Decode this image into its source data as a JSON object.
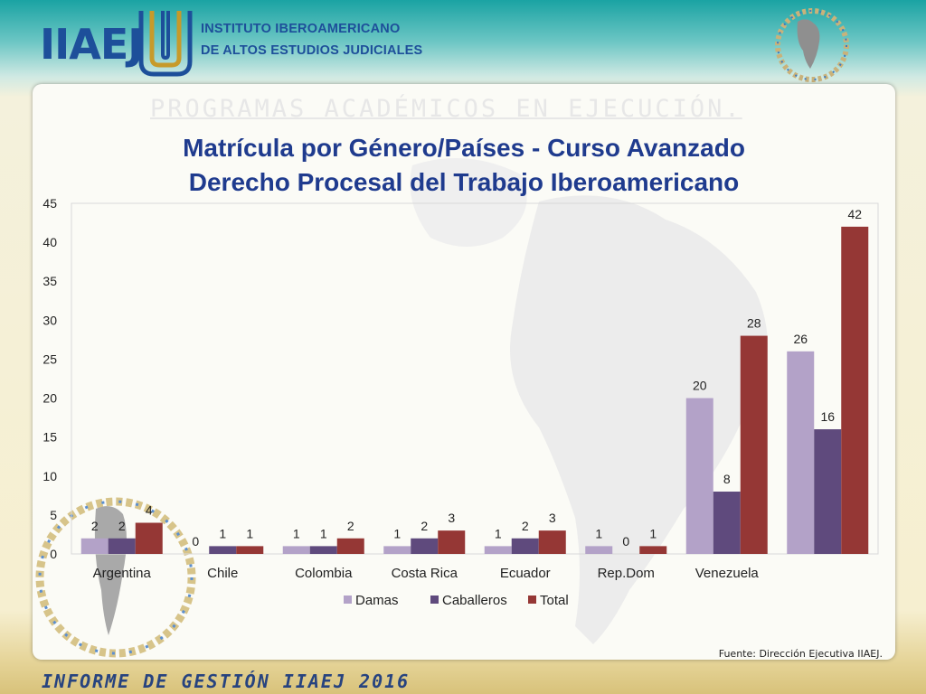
{
  "header": {
    "logo_text": "IIAEJ",
    "institute_line1": "INSTITUTO IBEROAMERICANO",
    "institute_line2": "DE ALTOS ESTUDIOS JUDICIALES",
    "brand_color": "#1d4f9a"
  },
  "slide": {
    "background_heading": "PROGRAMAS ACADÉMICOS EN EJECUCIÓN.",
    "source": "Fuente: Dirección Ejecutiva IIAEJ.",
    "footer": "INFORME DE GESTIÓN IIAEJ 2016"
  },
  "chart_data": {
    "type": "bar",
    "title": "Matrícula por Género/Países - Curso Avanzado Derecho Procesal del Trabajo Iberoamericano",
    "title_lines": [
      "Matrícula por Género/Países - Curso Avanzado",
      "Derecho Procesal del Trabajo Iberoamericano"
    ],
    "categories": [
      "Argentina",
      "Chile",
      "Colombia",
      "Costa Rica",
      "Ecuador",
      "Rep.Dom",
      "Venezuela",
      ""
    ],
    "series": [
      {
        "name": "Damas",
        "color": "#b3a2c8",
        "values": [
          2,
          0,
          1,
          1,
          1,
          1,
          20,
          26
        ]
      },
      {
        "name": "Caballeros",
        "color": "#5f4a7d",
        "values": [
          2,
          1,
          1,
          2,
          2,
          0,
          8,
          16
        ]
      },
      {
        "name": "Total",
        "color": "#953735",
        "values": [
          4,
          1,
          2,
          3,
          3,
          1,
          28,
          42
        ]
      }
    ],
    "ylim": [
      0,
      45
    ],
    "yticks": [
      0,
      5,
      10,
      15,
      20,
      25,
      30,
      35,
      40,
      45
    ],
    "grid": false,
    "data_labels": true,
    "legend_position": "bottom"
  }
}
